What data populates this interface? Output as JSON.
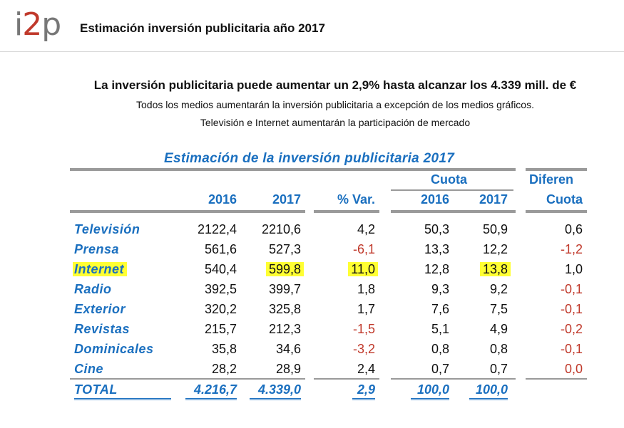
{
  "header": {
    "logo_i": "i",
    "logo_two": "2",
    "logo_p": "p",
    "title": "Estimación inversión publicitaria año 2017"
  },
  "summary": {
    "headline": "La inversión publicitaria puede aumentar un 2,9% hasta alcanzar los 4.339 mill. de €",
    "line1": "Todos los medios aumentarán la inversión publicitaria a excepción de los medios gráficos.",
    "line2": "Televisión e Internet aumentarán la participación de mercado"
  },
  "table": {
    "title": "Estimación de la inversión publicitaria 2017",
    "headers": {
      "cuota": "Cuota",
      "diferen": "Diferen",
      "y2016": "2016",
      "y2017": "2017",
      "var": "% Var.",
      "c2016": "2016",
      "c2017": "2017",
      "cuota2": "Cuota"
    },
    "rows": [
      {
        "medio": "Televisión",
        "v2016": "2122,4",
        "v2017": "2210,6",
        "var": "4,2",
        "c2016": "50,3",
        "c2017": "50,9",
        "dif": "0,6"
      },
      {
        "medio": "Prensa",
        "v2016": "561,6",
        "v2017": "527,3",
        "var": "-6,1",
        "c2016": "13,3",
        "c2017": "12,2",
        "dif": "-1,2"
      },
      {
        "medio": "Internet",
        "v2016": "540,4",
        "v2017": "599,8",
        "var": "11,0",
        "c2016": "12,8",
        "c2017": "13,8",
        "dif": "1,0"
      },
      {
        "medio": "Radio",
        "v2016": "392,5",
        "v2017": "399,7",
        "var": "1,8",
        "c2016": "9,3",
        "c2017": "9,2",
        "dif": "-0,1"
      },
      {
        "medio": "Exterior",
        "v2016": "320,2",
        "v2017": "325,8",
        "var": "1,7",
        "c2016": "7,6",
        "c2017": "7,5",
        "dif": "-0,1"
      },
      {
        "medio": "Revistas",
        "v2016": "215,7",
        "v2017": "212,3",
        "var": "-1,5",
        "c2016": "5,1",
        "c2017": "4,9",
        "dif": "-0,2"
      },
      {
        "medio": "Dominicales",
        "v2016": "35,8",
        "v2017": "34,6",
        "var": "-3,2",
        "c2016": "0,8",
        "c2017": "0,8",
        "dif": "-0,1"
      },
      {
        "medio": "Cine",
        "v2016": "28,2",
        "v2017": "28,9",
        "var": "2,4",
        "c2016": "0,7",
        "c2017": "0,7",
        "dif": "0,0"
      }
    ],
    "total": {
      "medio": "TOTAL",
      "v2016": "4.216,7",
      "v2017": "4.339,0",
      "var": "2,9",
      "c2016": "100,0",
      "c2017": "100,0"
    }
  },
  "colors": {
    "accent_blue": "#1a6fbf",
    "negative_red": "#c0392b",
    "highlight_yellow": "#ffff33",
    "rule_gray": "#9a9a9a"
  }
}
